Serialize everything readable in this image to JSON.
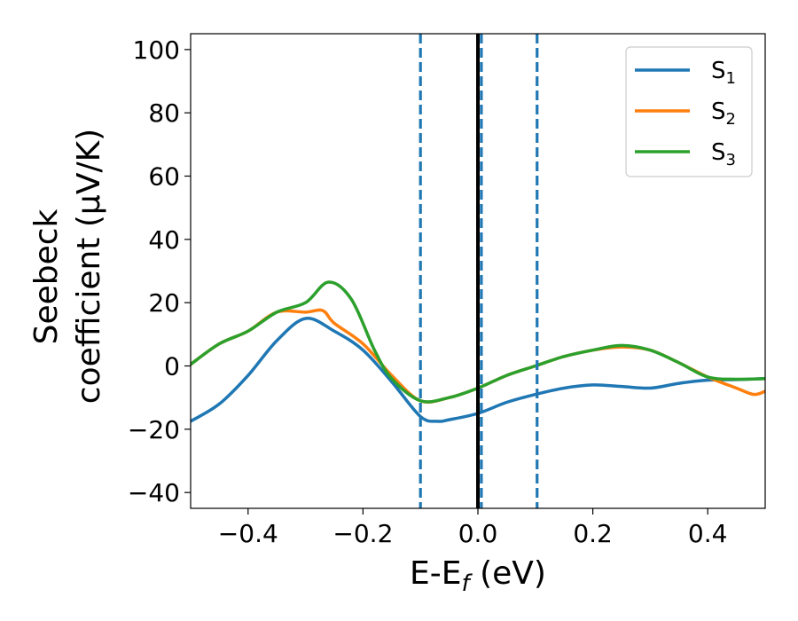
{
  "chart_data": {
    "type": "line",
    "xlabel_main": "E-E",
    "xlabel_sub": "f",
    "xlabel_unit": " (eV)",
    "ylabel_line1": "Seebeck",
    "ylabel_line2": "coefficient  (μV/K)",
    "xlim": [
      -0.5,
      0.5
    ],
    "ylim": [
      -45,
      105
    ],
    "xticks": [
      -0.4,
      -0.2,
      0.0,
      0.2,
      0.4
    ],
    "xtick_labels": [
      "−0.4",
      "−0.2",
      "0.0",
      "0.2",
      "0.4"
    ],
    "yticks": [
      -40,
      -20,
      0,
      20,
      40,
      60,
      80,
      100
    ],
    "ytick_labels": [
      "−40",
      "−20",
      "0",
      "20",
      "40",
      "60",
      "80",
      "100"
    ],
    "grid": false,
    "legend_position": "top-right",
    "series": [
      {
        "name": "S",
        "sub": "1",
        "color": "#1f77b4",
        "x": [
          -0.5,
          -0.45,
          -0.4,
          -0.35,
          -0.3,
          -0.25,
          -0.2,
          -0.15,
          -0.1,
          -0.07,
          -0.05,
          0.0,
          0.05,
          0.1,
          0.15,
          0.2,
          0.25,
          0.3,
          0.35,
          0.4,
          0.45,
          0.5
        ],
        "y": [
          -17.5,
          -12,
          -3,
          8,
          15,
          11,
          5,
          -5,
          -16,
          -17.5,
          -17,
          -15,
          -11.5,
          -9,
          -7,
          -6,
          -6.5,
          -7,
          -5.5,
          -4.5,
          -4.3,
          -4
        ]
      },
      {
        "name": "S",
        "sub": "2",
        "color": "#ff7f0e",
        "x": [
          -0.5,
          -0.45,
          -0.4,
          -0.35,
          -0.3,
          -0.27,
          -0.25,
          -0.2,
          -0.15,
          -0.1,
          -0.05,
          0.0,
          0.05,
          0.1,
          0.15,
          0.2,
          0.25,
          0.3,
          0.35,
          0.4,
          0.45,
          0.48,
          0.5
        ],
        "y": [
          0.5,
          7,
          11,
          17,
          17,
          17.5,
          13.5,
          7,
          -3,
          -11,
          -10,
          -7,
          -3,
          0,
          3,
          5,
          6,
          5,
          1,
          -3.5,
          -7,
          -9,
          -8
        ]
      },
      {
        "name": "S",
        "sub": "3",
        "color": "#2ca02c",
        "x": [
          -0.5,
          -0.45,
          -0.4,
          -0.35,
          -0.3,
          -0.26,
          -0.22,
          -0.18,
          -0.15,
          -0.1,
          -0.05,
          0.0,
          0.05,
          0.1,
          0.15,
          0.2,
          0.25,
          0.3,
          0.35,
          0.4,
          0.45,
          0.5
        ],
        "y": [
          0.5,
          7,
          11,
          17,
          20,
          26.5,
          21,
          5,
          -4,
          -11,
          -10,
          -7,
          -3,
          0,
          3,
          5,
          6.5,
          5,
          1,
          -3.5,
          -4.2,
          -4
        ]
      }
    ],
    "vlines": [
      {
        "x": -0.1,
        "color": "#1f77b4",
        "style": "dashed"
      },
      {
        "x": 0.006,
        "color": "#1f77b4",
        "style": "dashed"
      },
      {
        "x": 0.103,
        "color": "#1f77b4",
        "style": "dashed"
      },
      {
        "x": 0.0,
        "color": "#000000",
        "style": "solid"
      }
    ]
  }
}
